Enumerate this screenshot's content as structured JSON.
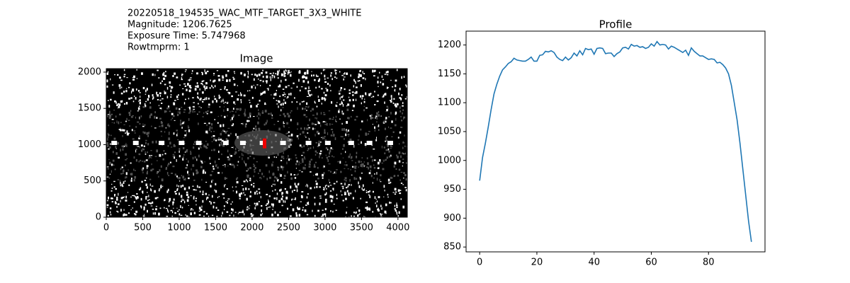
{
  "header": {
    "lines": [
      "20220518_194535_WAC_MTF_TARGET_3X3_WHITE",
      "Magnitude: 1206.7625",
      "Exposure Time: 5.747968",
      "Rowtmprm: 1"
    ]
  },
  "chart_data": [
    {
      "type": "image",
      "title": "Image",
      "xlim": [
        0,
        4128
      ],
      "ylim": [
        0,
        2048
      ],
      "xticks": [
        0,
        500,
        1000,
        1500,
        2000,
        2500,
        3000,
        3500,
        4000
      ],
      "yticks": [
        0,
        500,
        1000,
        1500,
        2000
      ],
      "grid": false
    },
    {
      "type": "line",
      "title": "Profile",
      "x": [
        0,
        1,
        2,
        3,
        4,
        5,
        6,
        7,
        8,
        9,
        10,
        11,
        12,
        13,
        14,
        15,
        16,
        17,
        18,
        19,
        20,
        21,
        22,
        23,
        24,
        25,
        26,
        27,
        28,
        29,
        30,
        31,
        32,
        33,
        34,
        35,
        36,
        37,
        38,
        39,
        40,
        41,
        42,
        43,
        44,
        45,
        46,
        47,
        48,
        49,
        50,
        51,
        52,
        53,
        54,
        55,
        56,
        57,
        58,
        59,
        60,
        61,
        62,
        63,
        64,
        65,
        66,
        67,
        68,
        69,
        70,
        71,
        72,
        73,
        74,
        75,
        76,
        77,
        78,
        79,
        80,
        81,
        82,
        83,
        84,
        85,
        86,
        87,
        88,
        89,
        90,
        91,
        92,
        93,
        94,
        95
      ],
      "series": [
        {
          "color": "#1f77b4",
          "values": [
            965,
            1005,
            1030,
            1058,
            1088,
            1115,
            1132,
            1146,
            1157,
            1162,
            1168,
            1171,
            1177,
            1174,
            1173,
            1172,
            1172,
            1175,
            1179,
            1172,
            1172,
            1182,
            1183,
            1189,
            1188,
            1190,
            1187,
            1179,
            1175,
            1173,
            1179,
            1174,
            1178,
            1186,
            1181,
            1190,
            1183,
            1194,
            1192,
            1193,
            1184,
            1194,
            1195,
            1194,
            1185,
            1186,
            1186,
            1180,
            1185,
            1188,
            1195,
            1196,
            1193,
            1201,
            1198,
            1199,
            1196,
            1197,
            1194,
            1196,
            1202,
            1198,
            1206,
            1200,
            1201,
            1200,
            1193,
            1198,
            1196,
            1193,
            1190,
            1187,
            1191,
            1182,
            1195,
            1189,
            1185,
            1181,
            1181,
            1178,
            1175,
            1176,
            1175,
            1169,
            1170,
            1166,
            1160,
            1150,
            1130,
            1100,
            1070,
            1030,
            985,
            940,
            895,
            859
          ]
        }
      ],
      "xlim": [
        -4.75,
        99.75
      ],
      "ylim": [
        841.6,
        1224
      ],
      "xticks": [
        0,
        20,
        40,
        60,
        80
      ],
      "yticks": [
        850,
        900,
        950,
        1000,
        1050,
        1100,
        1150,
        1200
      ],
      "grid": false
    }
  ]
}
